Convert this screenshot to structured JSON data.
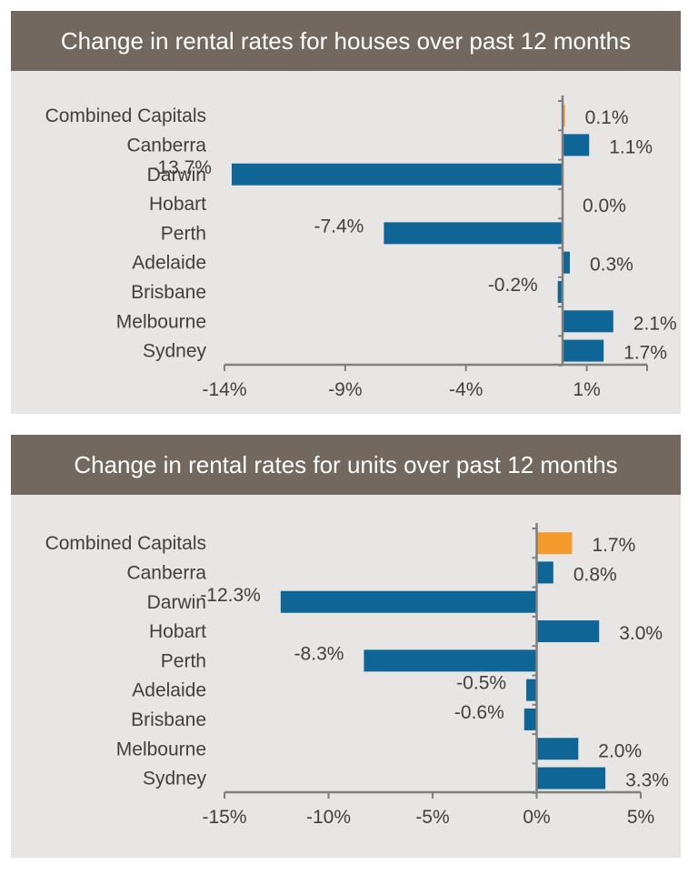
{
  "chart_data": [
    {
      "type": "bar",
      "orientation": "horizontal",
      "title": "Change in rental rates for houses over past 12 months",
      "categories": [
        "Combined Capitals",
        "Canberra",
        "Darwin",
        "Hobart",
        "Perth",
        "Adelaide",
        "Brisbane",
        "Melbourne",
        "Sydney"
      ],
      "values": [
        0.1,
        1.1,
        -13.7,
        0.0,
        -7.4,
        0.3,
        -0.2,
        2.1,
        1.7
      ],
      "value_labels": [
        "0.1%",
        "1.1%",
        "-13.7%",
        "0.0%",
        "-7.4%",
        "0.3%",
        "-0.2%",
        "2.1%",
        "1.7%"
      ],
      "highlight_category": "Combined Capitals",
      "xlim": [
        -14,
        3.5
      ],
      "x_ticks": [
        -14,
        -9,
        -4,
        1
      ],
      "x_tick_labels": [
        "-14%",
        "-9%",
        "-4%",
        "1%"
      ],
      "grid": false
    },
    {
      "type": "bar",
      "orientation": "horizontal",
      "title": "Change in rental rates for units over past 12 months",
      "categories": [
        "Combined Capitals",
        "Canberra",
        "Darwin",
        "Hobart",
        "Perth",
        "Adelaide",
        "Brisbane",
        "Melbourne",
        "Sydney"
      ],
      "values": [
        1.7,
        0.8,
        -12.3,
        3.0,
        -8.3,
        -0.5,
        -0.6,
        2.0,
        3.3
      ],
      "value_labels": [
        "1.7%",
        "0.8%",
        "-12.3%",
        "3.0%",
        "-8.3%",
        "-0.5%",
        "-0.6%",
        "2.0%",
        "3.3%"
      ],
      "highlight_category": "Combined Capitals",
      "xlim": [
        -15,
        5
      ],
      "x_ticks": [
        -15,
        -10,
        -5,
        0,
        5
      ],
      "x_tick_labels": [
        "-15%",
        "-10%",
        "-5%",
        "0%",
        "5%"
      ],
      "grid": false
    }
  ],
  "colors": {
    "bar": "#0e6596",
    "highlight": "#f59a2c",
    "header_bg": "#736860",
    "panel_bg": "#e7e6e4",
    "text": "#404040",
    "axis": "#7f7f7f"
  }
}
